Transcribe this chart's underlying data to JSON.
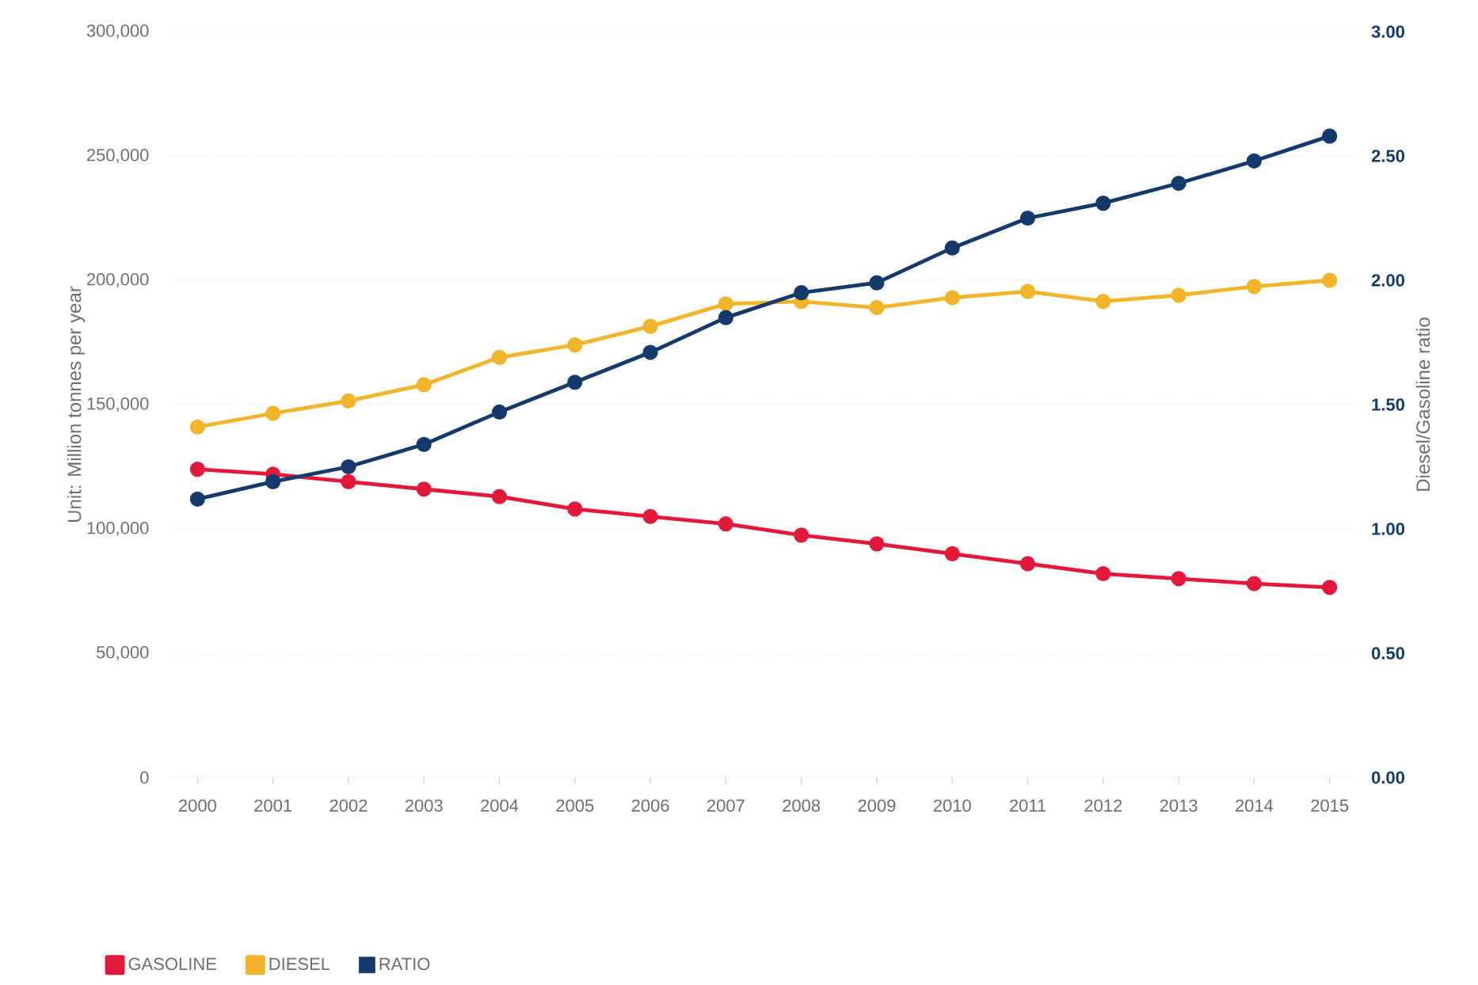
{
  "chart_data": {
    "type": "line",
    "ylabel": "Unit: Million tonnes per year",
    "y2label": "Diesel/Gasoline ratio",
    "categories": [
      "2000",
      "2001",
      "2002",
      "2003",
      "2004",
      "2005",
      "2006",
      "2007",
      "2008",
      "2009",
      "2010",
      "2011",
      "2012",
      "2013",
      "2014",
      "2015"
    ],
    "series": [
      {
        "name": "GASOLINE",
        "color": "#e4183a",
        "values": [
          124000,
          122000,
          119000,
          116000,
          113000,
          108000,
          105000,
          102000,
          97500,
          94000,
          90000,
          86000,
          82000,
          80000,
          78000,
          76500
        ]
      },
      {
        "name": "DIESEL",
        "color": "#f2b52a",
        "values": [
          141000,
          146500,
          151500,
          158000,
          169000,
          174000,
          181500,
          190500,
          191500,
          189000,
          193000,
          195500,
          191500,
          194000,
          197500,
          200000
        ]
      },
      {
        "name": "RATIO",
        "color": "#133a6b",
        "axis": "y2",
        "values": [
          1.12,
          1.19,
          1.25,
          1.34,
          1.47,
          1.59,
          1.71,
          1.85,
          1.95,
          1.99,
          2.13,
          2.25,
          2.31,
          2.39,
          2.48,
          2.58
        ]
      }
    ],
    "ylim": [
      0,
      300000
    ],
    "yticks": [
      0,
      {
        "value": 50000,
        "label": "50,000"
      },
      {
        "value": 100000,
        "label": "100,000"
      },
      {
        "value": 150000,
        "label": "150,000"
      },
      {
        "value": 200000,
        "label": "200,000"
      },
      {
        "value": 250000,
        "label": "250,000"
      },
      {
        "value": 300000,
        "label": "300,000"
      }
    ],
    "y2lim": [
      0,
      3
    ],
    "y2ticks": [
      {
        "value": 0,
        "label": "0.00"
      },
      {
        "value": 0.5,
        "label": "0.50"
      },
      {
        "value": 1,
        "label": "1.00"
      },
      {
        "value": 1.5,
        "label": "1.50"
      },
      {
        "value": 2,
        "label": "2.00"
      },
      {
        "value": 2.5,
        "label": "2.50"
      },
      {
        "value": 3,
        "label": "3.00"
      }
    ],
    "grid": "y",
    "legend": "bottom",
    "marker": "circle",
    "line_style": "solid"
  }
}
